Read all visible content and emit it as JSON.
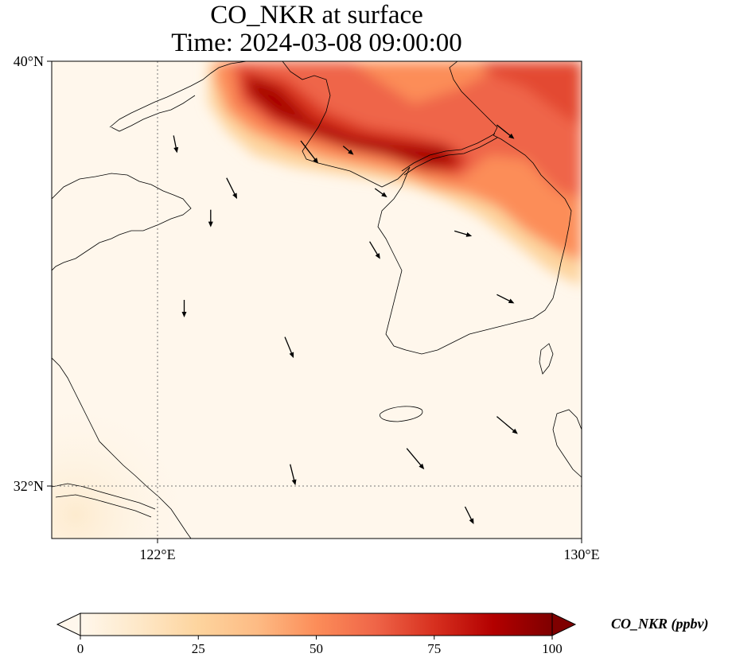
{
  "title": {
    "line1": "CO_NKR at surface",
    "line2": "Time: 2024-03-08 09:00:00"
  },
  "axes": {
    "lon_ticks": [
      {
        "value": 122,
        "label": "122°E"
      },
      {
        "value": 130,
        "label": "130°E"
      }
    ],
    "lat_ticks": [
      {
        "value": 40,
        "label": "40°N"
      },
      {
        "value": 32,
        "label": "32°N"
      }
    ],
    "lon_range": [
      120,
      130
    ],
    "lat_range": [
      31,
      40
    ]
  },
  "colorbar": {
    "label": "CO_NKR (ppbv)",
    "ticks": [
      {
        "value": 0,
        "label": "0"
      },
      {
        "value": 25,
        "label": "25"
      },
      {
        "value": 50,
        "label": "50"
      },
      {
        "value": 75,
        "label": "75"
      },
      {
        "value": 100,
        "label": "100"
      }
    ],
    "range": [
      0,
      100
    ],
    "colormap": "OrRd",
    "extend": "both"
  },
  "chart_data": {
    "type": "heatmap",
    "variable": "CO_NKR",
    "units": "ppbv",
    "level": "surface",
    "time": "2024-03-08 09:00:00",
    "plume_core": [
      {
        "lon": 123.8,
        "lat": 39.4,
        "value": 100
      },
      {
        "lon": 124.5,
        "lat": 39.2,
        "value": 100
      },
      {
        "lon": 125.3,
        "lat": 38.8,
        "value": 92
      },
      {
        "lon": 126.2,
        "lat": 38.5,
        "value": 85
      },
      {
        "lon": 127.2,
        "lat": 38.0,
        "value": 90
      },
      {
        "lon": 128.2,
        "lat": 38.4,
        "value": 60
      },
      {
        "lon": 129.4,
        "lat": 39.3,
        "value": 70
      },
      {
        "lon": 129.8,
        "lat": 37.8,
        "value": 60
      }
    ],
    "background_value": 5,
    "wind_vectors": [
      {
        "lon": 122.3,
        "lat": 38.6,
        "u": 0.2,
        "v": -1.0
      },
      {
        "lon": 123.0,
        "lat": 37.2,
        "u": 0.0,
        "v": -1.0
      },
      {
        "lon": 123.3,
        "lat": 37.8,
        "u": 0.6,
        "v": -1.2
      },
      {
        "lon": 124.7,
        "lat": 38.5,
        "u": 1.0,
        "v": -1.3
      },
      {
        "lon": 125.5,
        "lat": 38.4,
        "u": 0.6,
        "v": -0.5
      },
      {
        "lon": 126.1,
        "lat": 37.6,
        "u": 0.7,
        "v": -0.5
      },
      {
        "lon": 127.6,
        "lat": 36.8,
        "u": 1.0,
        "v": -0.3
      },
      {
        "lon": 128.4,
        "lat": 38.8,
        "u": 1.0,
        "v": -0.8
      },
      {
        "lon": 126.0,
        "lat": 36.6,
        "u": 0.6,
        "v": -1.0
      },
      {
        "lon": 128.4,
        "lat": 35.6,
        "u": 1.0,
        "v": -0.5
      },
      {
        "lon": 124.4,
        "lat": 34.8,
        "u": 0.5,
        "v": -1.2
      },
      {
        "lon": 126.7,
        "lat": 32.7,
        "u": 1.0,
        "v": -1.2
      },
      {
        "lon": 128.4,
        "lat": 33.3,
        "u": 1.2,
        "v": -1.0
      },
      {
        "lon": 122.5,
        "lat": 35.5,
        "u": 0.0,
        "v": -1.0
      },
      {
        "lon": 124.5,
        "lat": 32.4,
        "u": 0.3,
        "v": -1.2
      },
      {
        "lon": 127.8,
        "lat": 31.6,
        "u": 0.5,
        "v": -1.0
      }
    ]
  }
}
